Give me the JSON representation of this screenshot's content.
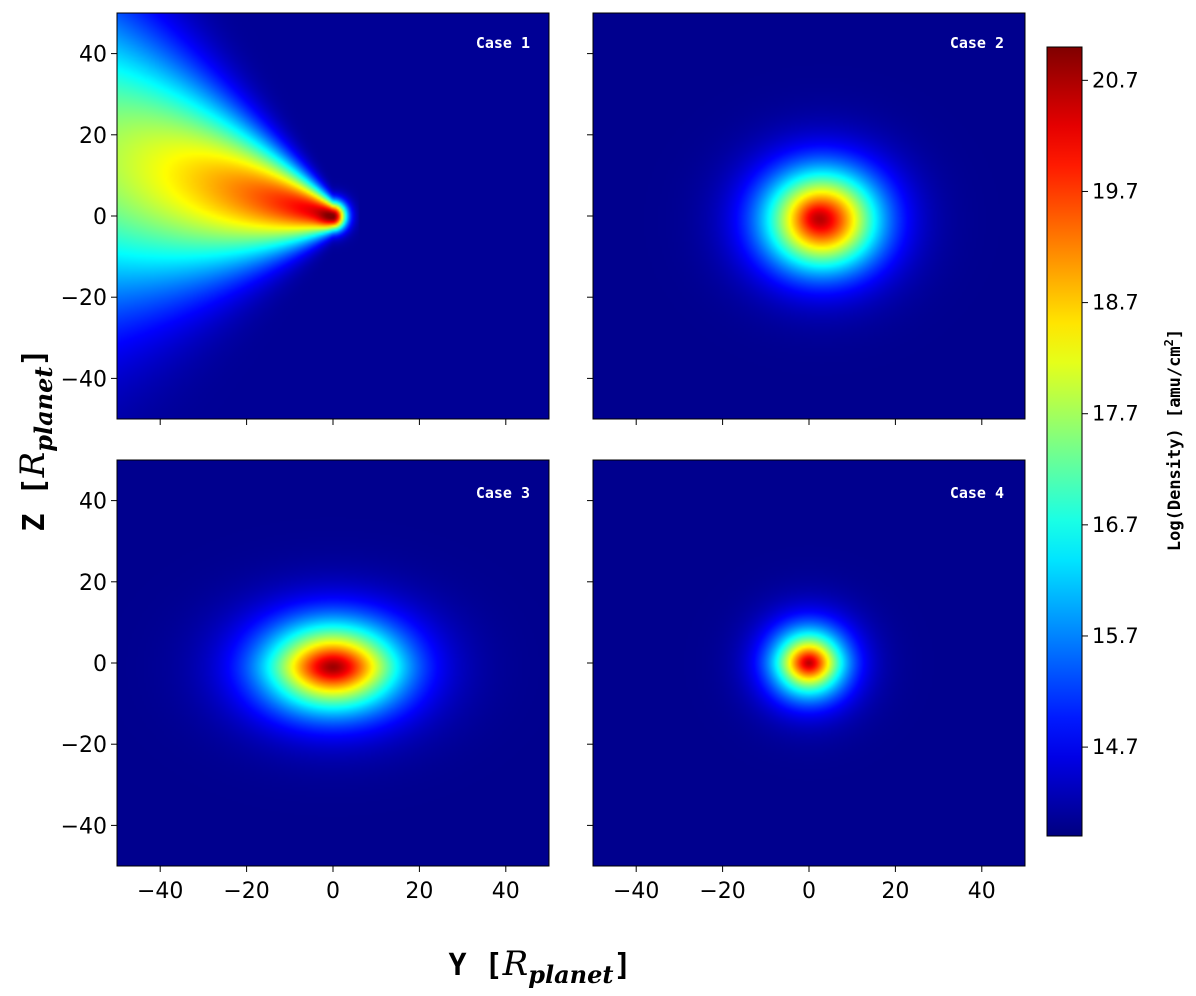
{
  "chart_data": {
    "type": "heatmap",
    "xlabel": {
      "main": "Y",
      "unit": "R",
      "unit_sub": "planet"
    },
    "ylabel": {
      "main": "Z",
      "unit": "R",
      "unit_sub": "planet"
    },
    "xlim": [
      -50,
      50
    ],
    "ylim": [
      -50,
      50
    ],
    "xticks": [
      -40,
      -20,
      0,
      20,
      40
    ],
    "yticks": [
      -40,
      -20,
      0,
      20,
      40
    ],
    "xtick_labels": [
      "−40",
      "−20",
      "0",
      "20",
      "40"
    ],
    "ytick_labels": [
      "−40",
      "−20",
      "0",
      "20",
      "40"
    ],
    "colormap": "jet",
    "colorbar": {
      "label": "Log(Density) [amu/cm",
      "label_sup": "2",
      "label_end": "]",
      "range": [
        13.9,
        21.0
      ],
      "ticks": [
        14.7,
        15.7,
        16.7,
        17.7,
        18.7,
        19.7,
        20.7
      ],
      "tick_labels": [
        "14.7",
        "15.7",
        "16.7",
        "17.7",
        "18.7",
        "19.7",
        "20.7"
      ]
    },
    "panels": [
      {
        "label": "Case 1",
        "description": "comet-like tail extending to -Y, peak near origin tilted upward to the left",
        "peak_log_density": 20.9,
        "components": [
          {
            "cx": -1,
            "cy": -1,
            "sx": 3,
            "sy": 1.5,
            "angle": 10,
            "amp": 20.9
          }
        ]
      },
      {
        "label": "Case 2",
        "peak_log_density": 20.5
      },
      {
        "label": "Case 3",
        "peak_log_density": 20.6
      },
      {
        "label": "Case 4",
        "peak_log_density": 20.4
      }
    ]
  }
}
